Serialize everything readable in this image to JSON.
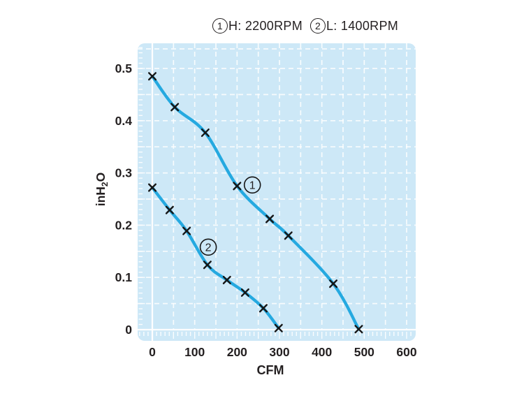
{
  "title": {
    "series1_mark": "1",
    "series1_label": "H: 2200RPM",
    "series2_mark": "2",
    "series2_label": "L: 1400RPM"
  },
  "chart_data": {
    "type": "line",
    "title": "(1)H: 2200RPM (2)L: 1400RPM",
    "xlabel": "CFM",
    "ylabel": "inH2O",
    "ylabel_parts": {
      "pre": "inH",
      "sub": "2",
      "post": "O"
    },
    "xlim": [
      0,
      600
    ],
    "ylim": [
      0,
      0.5
    ],
    "x_ticks": [
      0,
      100,
      200,
      300,
      400,
      500,
      600
    ],
    "y_ticks": [
      0.5,
      0.4,
      0.3,
      0.2,
      0.1,
      0
    ],
    "grid": {
      "x_major_step": 50,
      "x_minor_step": 10,
      "y_major_step": 0.05,
      "y_minor_step": 0.01,
      "style": "white dashed majors, ruler minor ticks on left and bottom edges"
    },
    "legend_position": "top-title",
    "series": [
      {
        "name": "H: 2200RPM",
        "label": "1",
        "marker": "x",
        "points": [
          [
            0,
            0.485
          ],
          [
            53,
            0.426
          ],
          [
            125,
            0.377
          ],
          [
            200,
            0.275
          ],
          [
            277,
            0.212
          ],
          [
            321,
            0.18
          ],
          [
            427,
            0.088
          ],
          [
            487,
            0.001
          ]
        ],
        "label_at": [
          236,
          0.277
        ]
      },
      {
        "name": "L: 1400RPM",
        "label": "2",
        "marker": "x",
        "points": [
          [
            0,
            0.272
          ],
          [
            41,
            0.229
          ],
          [
            81,
            0.189
          ],
          [
            130,
            0.124
          ],
          [
            176,
            0.095
          ],
          [
            219,
            0.071
          ],
          [
            262,
            0.041
          ],
          [
            298,
            0.003
          ]
        ],
        "label_at": [
          132,
          0.158
        ]
      }
    ],
    "colors": {
      "line": "#25a9e0",
      "plot_bg": "#cde8f7",
      "grid": "#ffffff",
      "marker": "#161616",
      "text": "#231f20"
    }
  }
}
